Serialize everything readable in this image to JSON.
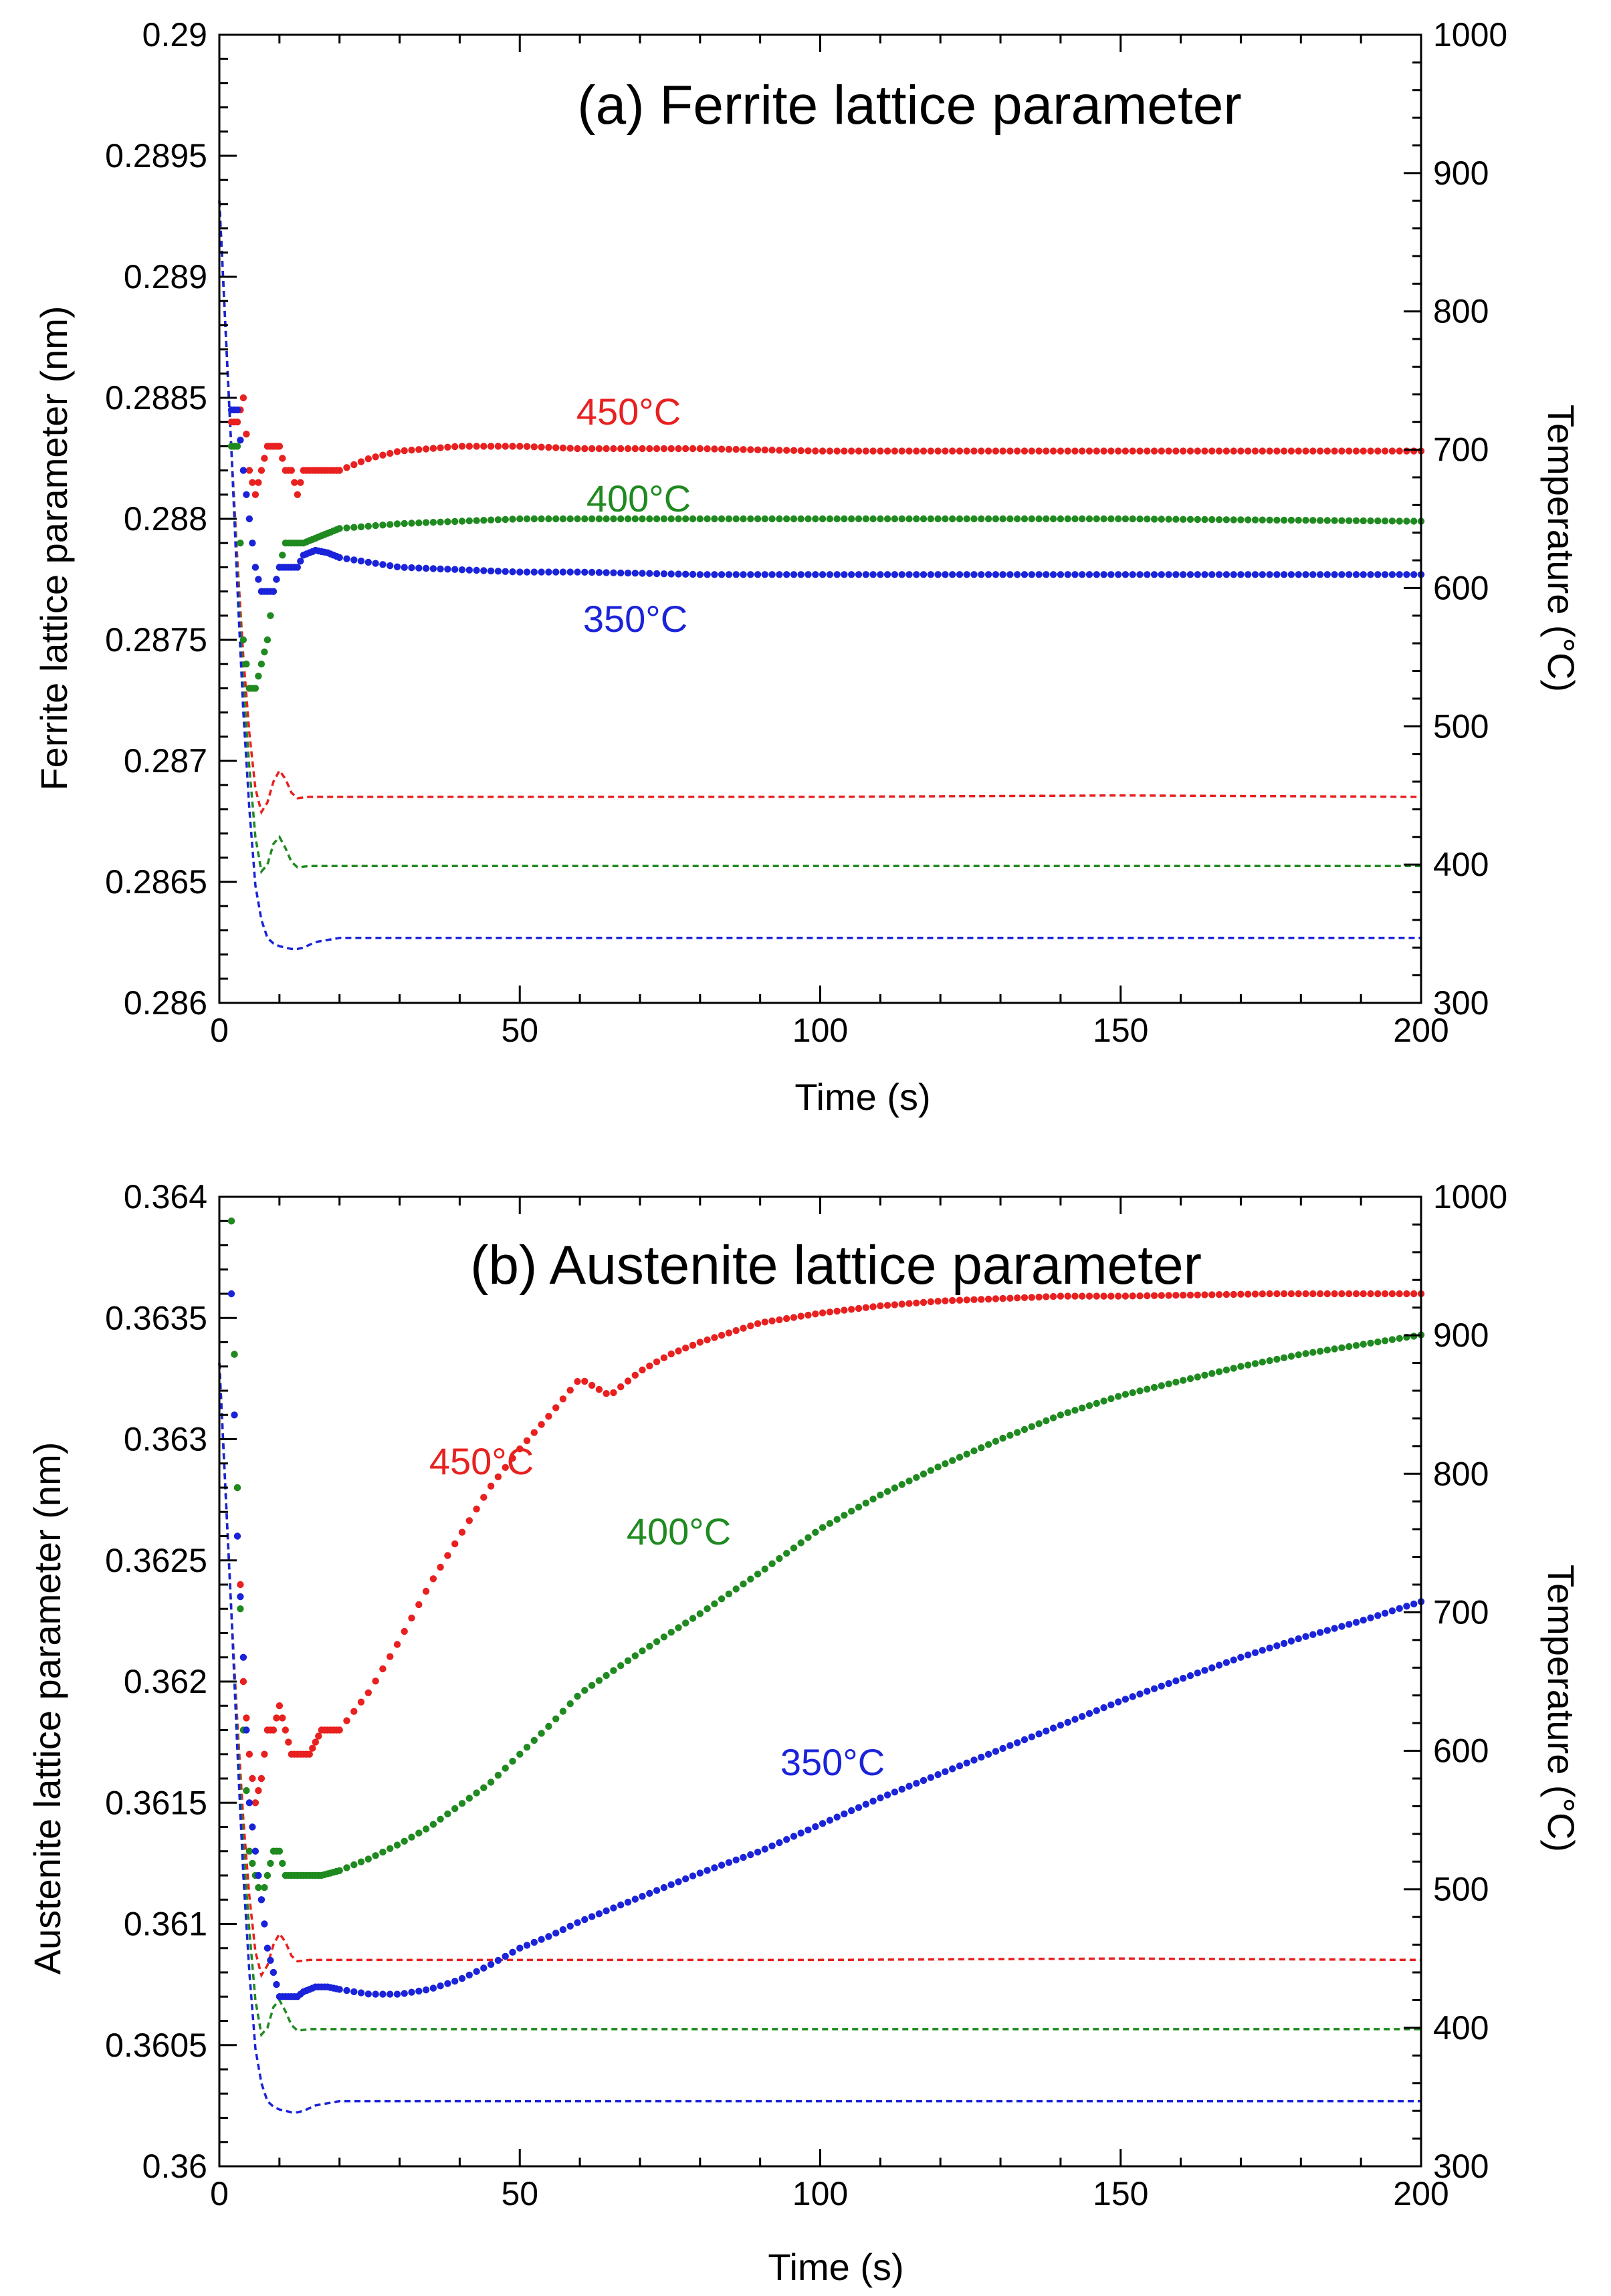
{
  "chart_data": [
    {
      "type": "scatter",
      "title": "(a) Ferrite lattice parameter",
      "xlabel": "Time (s)",
      "ylabel": "Ferrite lattice parameter (nm)",
      "y2label": "Temperature (°C)",
      "xlim": [
        0,
        200
      ],
      "ylim": [
        0.286,
        0.29
      ],
      "y2lim": [
        300,
        1000
      ],
      "xticks": [
        "0",
        "50",
        "100",
        "150",
        "200"
      ],
      "yticks": [
        "0.286",
        "0.2865",
        "0.287",
        "0.2875",
        "0.288",
        "0.2885",
        "0.289",
        "0.2895",
        "0.29"
      ],
      "y2ticks": [
        "300",
        "400",
        "500",
        "600",
        "700",
        "800",
        "900",
        "1000"
      ],
      "grid": false,
      "series": [
        {
          "name": "450°C",
          "color": "#e8201f",
          "lattice": {
            "t": [
              3,
              4,
              5,
              6,
              7,
              8,
              9,
              10,
              11,
              12,
              13,
              14,
              16,
              18,
              20,
              25,
              30,
              35,
              40,
              50,
              60,
              80,
              100,
              150,
              200
            ],
            "v": [
              0.2884,
              0.2885,
              0.2882,
              0.2881,
              0.2882,
              0.2883,
              0.2883,
              0.2883,
              0.2882,
              0.2882,
              0.2881,
              0.2882,
              0.2882,
              0.2882,
              0.2882,
              0.28825,
              0.28828,
              0.28829,
              0.2883,
              0.2883,
              0.28829,
              0.28829,
              0.28828,
              0.28828,
              0.28828
            ]
          },
          "temperature": {
            "t": [
              0,
              1,
              2,
              3,
              4,
              5,
              6,
              7,
              8,
              9,
              10,
              11,
              12,
              13,
              15,
              20,
              50,
              100,
              150,
              200
            ],
            "v": [
              880,
              790,
              700,
              620,
              550,
              495,
              455,
              438,
              445,
              460,
              468,
              462,
              452,
              448,
              449,
              449,
              449,
              449,
              450,
              449
            ]
          }
        },
        {
          "name": "400°C",
          "color": "#1f8a1f",
          "lattice": {
            "t": [
              3,
              4,
              5,
              6,
              7,
              8,
              9,
              10,
              11,
              12,
              13,
              14,
              16,
              18,
              20,
              25,
              30,
              40,
              50,
              60,
              75,
              100,
              150,
              200
            ],
            "v": [
              0.2883,
              0.2875,
              0.2873,
              0.2873,
              0.2874,
              0.2875,
              0.2877,
              0.2878,
              0.2879,
              0.2879,
              0.2879,
              0.2879,
              0.28792,
              0.28794,
              0.28796,
              0.28797,
              0.28798,
              0.28799,
              0.288,
              0.288,
              0.288,
              0.288,
              0.288,
              0.28799
            ]
          },
          "temperature": {
            "t": [
              0,
              1,
              2,
              3,
              4,
              5,
              6,
              7,
              8,
              9,
              10,
              11,
              12,
              13,
              15,
              20,
              50,
              100,
              150,
              200
            ],
            "v": [
              880,
              790,
              700,
              610,
              530,
              470,
              420,
              395,
              400,
              415,
              420,
              412,
              402,
              398,
              399,
              399,
              399,
              399,
              399,
              399
            ]
          }
        },
        {
          "name": "350°C",
          "color": "#1a23d9",
          "lattice": {
            "t": [
              3,
              4,
              5,
              6,
              7,
              8,
              9,
              10,
              11,
              12,
              13,
              14,
              16,
              18,
              20,
              25,
              30,
              40,
              50,
              60,
              80,
              100,
              150,
              200
            ],
            "v": [
              0.28845,
              0.2882,
              0.288,
              0.2878,
              0.2877,
              0.2877,
              0.2877,
              0.2878,
              0.2878,
              0.2878,
              0.2878,
              0.28785,
              0.28787,
              0.28786,
              0.28784,
              0.28782,
              0.2878,
              0.28779,
              0.28778,
              0.28778,
              0.28777,
              0.28777,
              0.28777,
              0.28777
            ]
          },
          "temperature": {
            "t": [
              0,
              1,
              2,
              3,
              4,
              5,
              6,
              7,
              8,
              9,
              10,
              11,
              12,
              13,
              14,
              16,
              20,
              50,
              100,
              150,
              200
            ],
            "v": [
              880,
              790,
              700,
              600,
              510,
              440,
              385,
              360,
              347,
              343,
              341,
              340,
              339,
              339,
              340,
              344,
              347,
              347,
              347,
              347,
              347
            ]
          }
        }
      ]
    },
    {
      "type": "scatter",
      "title": "(b) Austenite lattice parameter",
      "xlabel": "Time (s)",
      "ylabel": "Austenite lattice parameter (nm)",
      "y2label": "Temperature (°C)",
      "xlim": [
        0,
        200
      ],
      "ylim": [
        0.36,
        0.364
      ],
      "y2lim": [
        300,
        1000
      ],
      "xticks": [
        "0",
        "50",
        "100",
        "150",
        "200"
      ],
      "yticks": [
        "0.36",
        "0.3605",
        "0.361",
        "0.3615",
        "0.362",
        "0.3625",
        "0.363",
        "0.3635",
        "0.364"
      ],
      "y2ticks": [
        "300",
        "400",
        "500",
        "600",
        "700",
        "800",
        "900",
        "1000"
      ],
      "grid": false,
      "series": [
        {
          "name": "450°C",
          "color": "#e8201f",
          "lattice": {
            "t": [
              2,
              3,
              4,
              5,
              6,
              7,
              8,
              9,
              10,
              11,
              12,
              13,
              14,
              15,
              17,
              20,
              25,
              30,
              35,
              40,
              45,
              50,
              55,
              60,
              65,
              70,
              75,
              80,
              90,
              100,
              110,
              120,
              130,
              140,
              150,
              175,
              200
            ],
            "v": [
              0.3639,
              0.3628,
              0.362,
              0.3617,
              0.3615,
              0.3616,
              0.3618,
              0.3618,
              0.3619,
              0.3618,
              0.3617,
              0.3617,
              0.3617,
              0.3617,
              0.3618,
              0.3618,
              0.36196,
              0.36217,
              0.3624,
              0.3626,
              0.3628,
              0.36296,
              0.3631,
              0.36325,
              0.36318,
              0.36328,
              0.36335,
              0.3634,
              0.36348,
              0.36352,
              0.36355,
              0.36357,
              0.36358,
              0.36359,
              0.36359,
              0.3636,
              0.3636
            ]
          },
          "temperature": {
            "t": [
              0,
              1,
              2,
              3,
              4,
              5,
              6,
              7,
              8,
              9,
              10,
              11,
              12,
              13,
              15,
              20,
              50,
              100,
              150,
              200
            ],
            "v": [
              880,
              790,
              700,
              620,
              550,
              495,
              455,
              438,
              445,
              460,
              468,
              462,
              452,
              448,
              449,
              449,
              449,
              449,
              450,
              449
            ]
          }
        },
        {
          "name": "400°C",
          "color": "#1f8a1f",
          "lattice": {
            "t": [
              2,
              3,
              4,
              5,
              6,
              7,
              8,
              9,
              10,
              11,
              12,
              13,
              14,
              15,
              17,
              20,
              25,
              30,
              35,
              40,
              45,
              50,
              55,
              60,
              70,
              80,
              90,
              100,
              110,
              120,
              130,
              140,
              150,
              160,
              170,
              180,
              190,
              200
            ],
            "v": [
              0.3639,
              0.3628,
              0.3618,
              0.3613,
              0.3612,
              0.3611,
              0.3612,
              0.3613,
              0.3613,
              0.3612,
              0.3612,
              0.3612,
              0.3612,
              0.3612,
              0.3612,
              0.36122,
              0.36127,
              0.36133,
              0.3614,
              0.36149,
              0.36158,
              0.3617,
              0.36182,
              0.36195,
              0.36212,
              0.36228,
              0.36245,
              0.36263,
              0.36277,
              0.36289,
              0.363,
              0.3631,
              0.36318,
              0.36324,
              0.3633,
              0.36335,
              0.36339,
              0.36343
            ]
          },
          "temperature": {
            "t": [
              0,
              1,
              2,
              3,
              4,
              5,
              6,
              7,
              8,
              9,
              10,
              11,
              12,
              13,
              15,
              20,
              50,
              100,
              150,
              200
            ],
            "v": [
              880,
              790,
              700,
              610,
              530,
              470,
              420,
              395,
              400,
              415,
              420,
              412,
              402,
              398,
              399,
              399,
              399,
              399,
              399,
              399
            ]
          }
        },
        {
          "name": "350°C",
          "color": "#1a23d9",
          "lattice": {
            "t": [
              2,
              3,
              4,
              5,
              6,
              7,
              8,
              9,
              10,
              11,
              12,
              13,
              14,
              16,
              18,
              20,
              25,
              30,
              35,
              40,
              45,
              50,
              55,
              60,
              70,
              80,
              90,
              100,
              110,
              120,
              130,
              140,
              150,
              160,
              170,
              180,
              190,
              200
            ],
            "v": [
              0.3636,
              0.3626,
              0.3621,
              0.3615,
              0.3613,
              0.3611,
              0.3609,
              0.3608,
              0.3607,
              0.3607,
              0.3607,
              0.3607,
              0.36072,
              0.36074,
              0.36074,
              0.36073,
              0.36071,
              0.36071,
              0.36073,
              0.36077,
              0.36083,
              0.3609,
              0.36095,
              0.36101,
              0.36111,
              0.36121,
              0.3613,
              0.36141,
              0.36152,
              0.36162,
              0.36172,
              0.36182,
              0.36192,
              0.36201,
              0.3621,
              0.36218,
              0.36225,
              0.36233
            ]
          },
          "temperature": {
            "t": [
              0,
              1,
              2,
              3,
              4,
              5,
              6,
              7,
              8,
              9,
              10,
              11,
              12,
              13,
              14,
              16,
              20,
              50,
              100,
              150,
              200
            ],
            "v": [
              880,
              790,
              700,
              600,
              510,
              440,
              385,
              360,
              347,
              343,
              341,
              340,
              339,
              339,
              340,
              344,
              347,
              347,
              347,
              347,
              347
            ]
          }
        }
      ]
    }
  ]
}
